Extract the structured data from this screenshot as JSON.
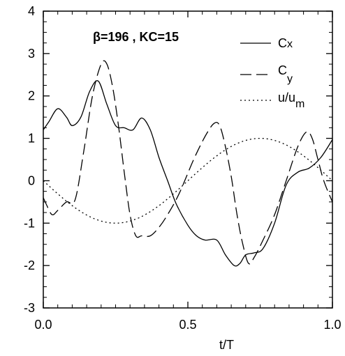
{
  "chart_data": {
    "type": "line",
    "annotation": "β=196 , KC=15",
    "xlabel": "t/T",
    "ylabel": "",
    "xlim": [
      0,
      1
    ],
    "ylim": [
      -3,
      4
    ],
    "x_ticks": [
      0,
      0.5,
      1
    ],
    "x_tick_labels": [
      "0.0",
      "0.5",
      "1.0"
    ],
    "y_ticks": [
      -3,
      -2,
      -1,
      0,
      1,
      2,
      3,
      4
    ],
    "y_tick_labels": [
      "-3",
      "-2",
      "-1",
      "0",
      "1",
      "2",
      "3",
      "4"
    ],
    "grid": false,
    "legend_placement": "top-right",
    "series": [
      {
        "name": "Cx",
        "legend_main": "C",
        "legend_sub": "x",
        "dash": "solid",
        "x": [
          0,
          0.02,
          0.05,
          0.08,
          0.1,
          0.13,
          0.16,
          0.19,
          0.22,
          0.25,
          0.28,
          0.31,
          0.34,
          0.37,
          0.4,
          0.43,
          0.46,
          0.5,
          0.53,
          0.56,
          0.6,
          0.63,
          0.66,
          0.68,
          0.7,
          0.73,
          0.76,
          0.8,
          0.84,
          0.88,
          0.92,
          0.96,
          1.0
        ],
        "y": [
          1.2,
          1.4,
          1.7,
          1.5,
          1.3,
          1.5,
          2.1,
          2.35,
          1.8,
          1.3,
          1.25,
          1.2,
          1.48,
          1.2,
          0.55,
          0.0,
          -0.55,
          -1.05,
          -1.3,
          -1.4,
          -1.4,
          -1.75,
          -2.0,
          -1.95,
          -1.75,
          -1.7,
          -1.6,
          -1.0,
          -0.1,
          0.2,
          0.3,
          0.55,
          0.97
        ]
      },
      {
        "name": "Cy",
        "legend_main": "C",
        "legend_sub": "y",
        "dash": "long-dash",
        "x": [
          0,
          0.01,
          0.03,
          0.05,
          0.08,
          0.11,
          0.14,
          0.17,
          0.2,
          0.22,
          0.24,
          0.26,
          0.28,
          0.3,
          0.32,
          0.34,
          0.37,
          0.4,
          0.43,
          0.47,
          0.52,
          0.56,
          0.59,
          0.61,
          0.63,
          0.65,
          0.67,
          0.69,
          0.71,
          0.73,
          0.76,
          0.8,
          0.84,
          0.88,
          0.91,
          0.93,
          0.95,
          0.97,
          1.0
        ],
        "y": [
          -0.4,
          -0.55,
          -0.8,
          -0.7,
          -0.5,
          -0.45,
          0.7,
          2.0,
          2.75,
          2.75,
          2.2,
          1.3,
          0.2,
          -0.8,
          -1.3,
          -1.3,
          -1.3,
          -1.1,
          -0.8,
          -0.3,
          0.5,
          1.05,
          1.35,
          1.3,
          0.8,
          0.1,
          -0.8,
          -1.5,
          -1.95,
          -1.8,
          -1.4,
          -0.8,
          0.0,
          0.8,
          1.15,
          1.0,
          0.5,
          0.0,
          -0.5
        ]
      },
      {
        "name": "u/um",
        "legend_main": "u/u",
        "legend_sub": "m",
        "dash": "dotted",
        "function": "-cos(2*pi*(t-0.25))",
        "sample_count": 101
      }
    ]
  }
}
